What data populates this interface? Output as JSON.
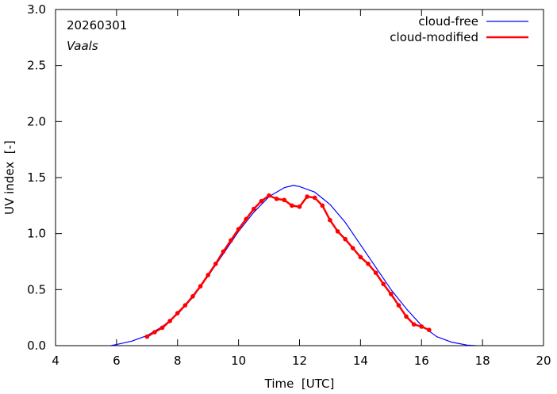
{
  "chart_data": {
    "type": "line",
    "title": "",
    "date": "20260301",
    "location": "Vaals",
    "xlabel": "Time  [UTC]",
    "ylabel": "UV index  [-]",
    "xlim": [
      4,
      20
    ],
    "ylim": [
      0.0,
      3.0
    ],
    "xticks": [
      4,
      6,
      8,
      10,
      12,
      14,
      16,
      18,
      20
    ],
    "xtick_labels": [
      "4",
      "6",
      "8",
      "10",
      "12",
      "14",
      "16",
      "18",
      "20"
    ],
    "yticks": [
      0.0,
      0.5,
      1.0,
      1.5,
      2.0,
      2.5,
      3.0
    ],
    "ytick_labels": [
      "0.0",
      "0.5",
      "1.0",
      "1.5",
      "2.0",
      "2.5",
      "3.0"
    ],
    "legend_position": "top-right",
    "colors": {
      "cloud_free": "#0000ff",
      "cloud_modified": "#ff0000",
      "axis": "#000000"
    },
    "series": [
      {
        "name": "cloud-free",
        "style": "line",
        "x": [
          5.8,
          6.0,
          6.5,
          7.0,
          7.5,
          8.0,
          8.5,
          9.0,
          9.5,
          10.0,
          10.5,
          11.0,
          11.5,
          11.8,
          12.0,
          12.5,
          13.0,
          13.5,
          14.0,
          14.5,
          15.0,
          15.5,
          16.0,
          16.5,
          17.0,
          17.5,
          17.8
        ],
        "values": [
          0.0,
          0.01,
          0.04,
          0.09,
          0.17,
          0.28,
          0.43,
          0.62,
          0.82,
          1.02,
          1.19,
          1.33,
          1.41,
          1.43,
          1.42,
          1.37,
          1.26,
          1.1,
          0.9,
          0.7,
          0.5,
          0.33,
          0.18,
          0.08,
          0.03,
          0.005,
          0.0
        ]
      },
      {
        "name": "cloud-modified",
        "style": "line+markers",
        "x": [
          7.0,
          7.25,
          7.5,
          7.75,
          8.0,
          8.25,
          8.5,
          8.75,
          9.0,
          9.25,
          9.5,
          9.75,
          10.0,
          10.25,
          10.5,
          10.75,
          11.0,
          11.25,
          11.5,
          11.75,
          12.0,
          12.25,
          12.5,
          12.75,
          13.0,
          13.25,
          13.5,
          13.75,
          14.0,
          14.25,
          14.5,
          14.75,
          15.0,
          15.25,
          15.5,
          15.75,
          16.0,
          16.25
        ],
        "values": [
          0.08,
          0.12,
          0.16,
          0.22,
          0.29,
          0.36,
          0.44,
          0.53,
          0.63,
          0.73,
          0.84,
          0.94,
          1.04,
          1.13,
          1.22,
          1.29,
          1.34,
          1.31,
          1.3,
          1.25,
          1.24,
          1.33,
          1.32,
          1.25,
          1.12,
          1.02,
          0.95,
          0.87,
          0.79,
          0.73,
          0.65,
          0.55,
          0.46,
          0.36,
          0.26,
          0.19,
          0.17,
          0.14
        ]
      }
    ]
  }
}
